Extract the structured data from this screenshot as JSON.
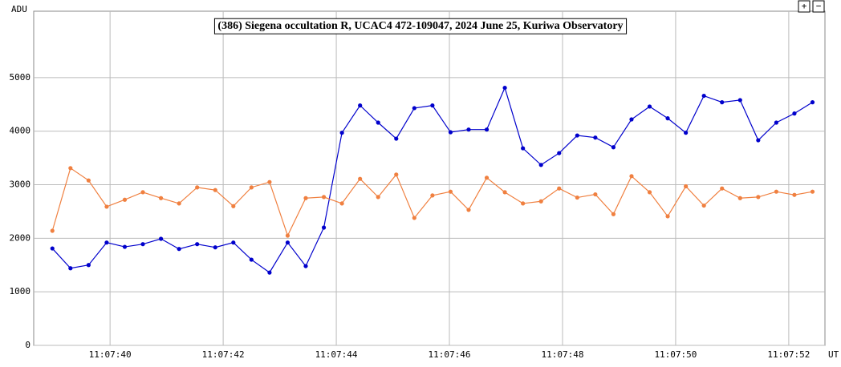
{
  "controls": [
    "+",
    "−"
  ],
  "chart_data": {
    "type": "line",
    "title": "(386) Siegena occultation R, UCAC4 472-109047, 2024 June 25, Kuriwa Observatory",
    "ylabel": "ADU",
    "xlabel": "UT",
    "x": [
      38.98,
      39.3,
      39.62,
      39.94,
      40.26,
      40.58,
      40.9,
      41.22,
      41.54,
      41.86,
      42.18,
      42.5,
      42.82,
      43.14,
      43.46,
      43.78,
      44.1,
      44.42,
      44.74,
      45.06,
      45.38,
      45.7,
      46.02,
      46.34,
      46.66,
      46.98,
      47.3,
      47.62,
      47.94,
      48.26,
      48.58,
      48.9,
      49.22,
      49.54,
      49.86,
      50.18,
      50.5,
      50.82,
      51.14,
      51.46,
      51.78,
      52.1,
      52.42
    ],
    "series": [
      {
        "color": "#0000cc",
        "values": [
          1810,
          1440,
          1500,
          1920,
          1840,
          1890,
          1990,
          1800,
          1890,
          1830,
          1920,
          1600,
          1360,
          1920,
          1480,
          2200,
          3970,
          4480,
          4160,
          3860,
          4430,
          4480,
          3980,
          4030,
          4030,
          4810,
          3680,
          3370,
          3590,
          3920,
          3880,
          3700,
          4220,
          4460,
          4240,
          3970,
          4660,
          4540,
          4580,
          3830,
          4160,
          4330,
          4540
        ]
      },
      {
        "color": "#f08040",
        "values": [
          2140,
          3310,
          3080,
          2590,
          2720,
          2860,
          2750,
          2650,
          2950,
          2900,
          2600,
          2950,
          3050,
          2050,
          2750,
          2770,
          2650,
          3110,
          2770,
          3190,
          2380,
          2800,
          2870,
          2530,
          3130,
          2860,
          2650,
          2690,
          2930,
          2760,
          2820,
          2450,
          3160,
          2860,
          2410,
          2970,
          2610,
          2930,
          2750,
          2770,
          2870,
          2810,
          2870
        ]
      }
    ],
    "xlim": [
      38.65,
      52.64
    ],
    "ylim": [
      0,
      6240
    ],
    "xticks": [
      {
        "value": 40,
        "label": "11:07:40"
      },
      {
        "value": 42,
        "label": "11:07:42"
      },
      {
        "value": 44,
        "label": "11:07:44"
      },
      {
        "value": 46,
        "label": "11:07:46"
      },
      {
        "value": 48,
        "label": "11:07:48"
      },
      {
        "value": 50,
        "label": "11:07:50"
      },
      {
        "value": 52,
        "label": "11:07:52"
      }
    ],
    "yticks": [
      0,
      1000,
      2000,
      3000,
      4000,
      5000
    ],
    "grid": true
  }
}
